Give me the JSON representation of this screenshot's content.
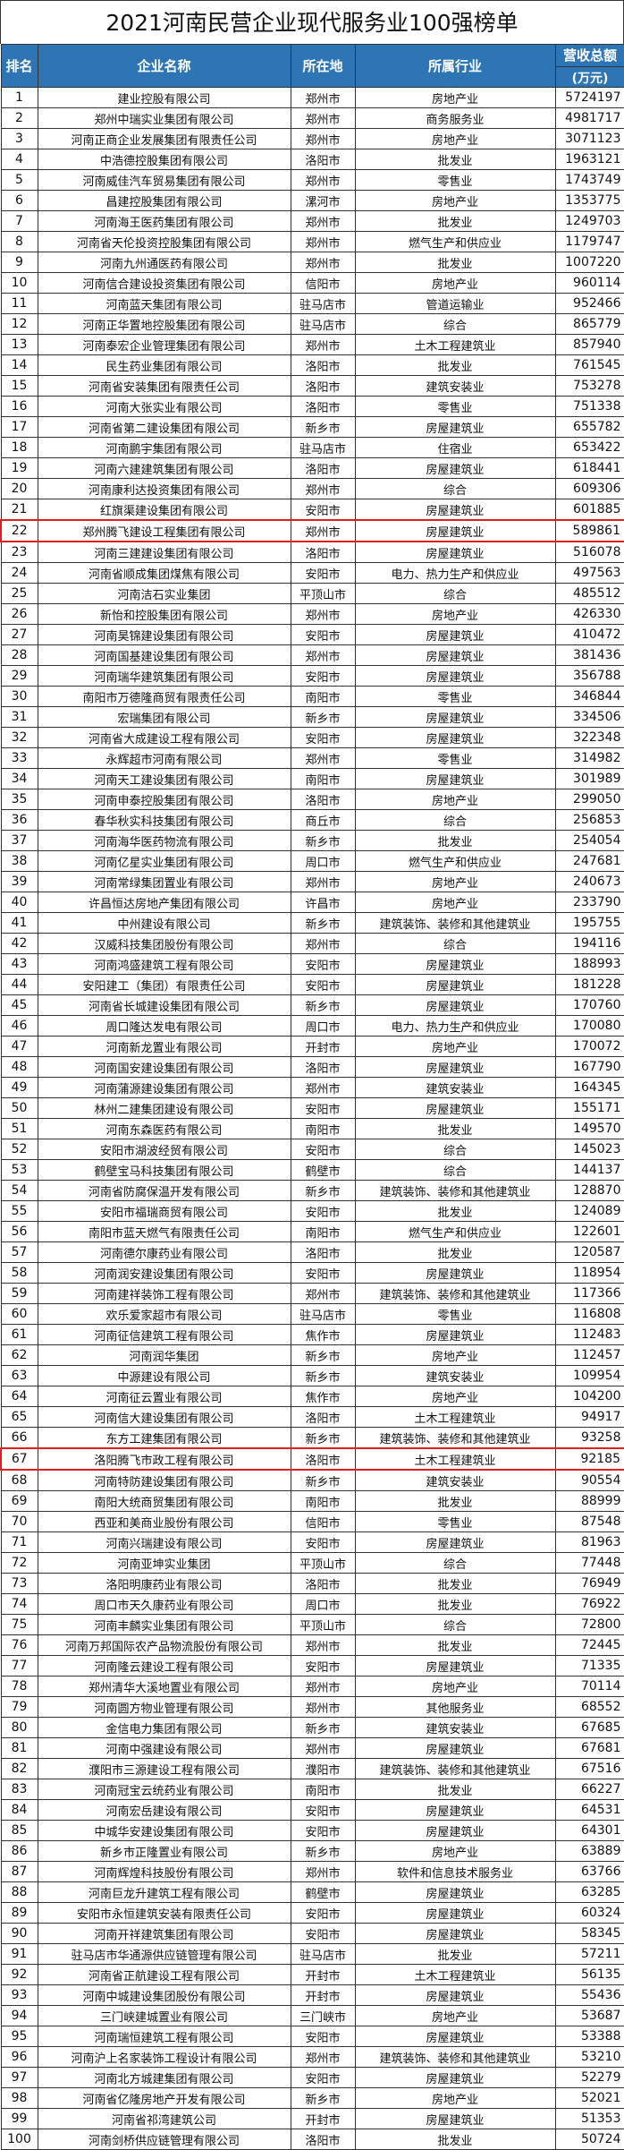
{
  "title": "2021河南民营企业现代服务业100强榜单",
  "header": {
    "rank": "排名",
    "name": "企业名称",
    "city": "所在地",
    "industry": "所属行业",
    "revenue": "营收总额",
    "revenue_unit": "(万元)"
  },
  "colors": {
    "header_bg": "#2e75b6",
    "highlight": "#e02020"
  },
  "highlighted_ranks": [
    22,
    67
  ],
  "rows": [
    [
      "1",
      "建业控股有限公司",
      "郑州市",
      "房地产业",
      "5724197"
    ],
    [
      "2",
      "郑州中瑞实业集团有限公司",
      "郑州市",
      "商务服务业",
      "4981717"
    ],
    [
      "3",
      "河南正商企业发展集团有限责任公司",
      "郑州市",
      "房地产业",
      "3071123"
    ],
    [
      "4",
      "中浩德控股集团有限公司",
      "洛阳市",
      "批发业",
      "1963121"
    ],
    [
      "5",
      "河南威佳汽车贸易集团有限公司",
      "郑州市",
      "零售业",
      "1743749"
    ],
    [
      "6",
      "昌建控股集团有限公司",
      "漯河市",
      "房地产业",
      "1353775"
    ],
    [
      "7",
      "河南海王医药集团有限公司",
      "郑州市",
      "批发业",
      "1249703"
    ],
    [
      "8",
      "河南省天伦投资控股集团有限公司",
      "郑州市",
      "燃气生产和供应业",
      "1179747"
    ],
    [
      "9",
      "河南九州通医药有限公司",
      "郑州市",
      "批发业",
      "1007220"
    ],
    [
      "10",
      "河南信合建设投资集团有限公司",
      "信阳市",
      "房地产业",
      "960114"
    ],
    [
      "11",
      "河南蓝天集团有限公司",
      "驻马店市",
      "管道运输业",
      "952466"
    ],
    [
      "12",
      "河南正华置地控股集团有限公司",
      "驻马店市",
      "综合",
      "865779"
    ],
    [
      "13",
      "河南泰宏企业管理集团有限公司",
      "郑州市",
      "土木工程建筑业",
      "857940"
    ],
    [
      "14",
      "民生药业集团有限公司",
      "洛阳市",
      "批发业",
      "761545"
    ],
    [
      "15",
      "河南省安装集团有限责任公司",
      "洛阳市",
      "建筑安装业",
      "753278"
    ],
    [
      "16",
      "河南大张实业有限公司",
      "洛阳市",
      "零售业",
      "751338"
    ],
    [
      "17",
      "河南省第二建设集团有限公司",
      "新乡市",
      "房屋建筑业",
      "655782"
    ],
    [
      "18",
      "河南鹏宇集团有限公司",
      "驻马店市",
      "住宿业",
      "653422"
    ],
    [
      "19",
      "河南六建建筑集团有限公司",
      "洛阳市",
      "房屋建筑业",
      "618441"
    ],
    [
      "20",
      "河南康利达投资集团有限公司",
      "郑州市",
      "综合",
      "609306"
    ],
    [
      "21",
      "红旗渠建设集团有限公司",
      "安阳市",
      "房屋建筑业",
      "601885"
    ],
    [
      "22",
      "郑州腾飞建设工程集团有限公司",
      "郑州市",
      "房屋建筑业",
      "589861"
    ],
    [
      "23",
      "河南三建建设集团有限公司",
      "洛阳市",
      "房屋建筑业",
      "516078"
    ],
    [
      "24",
      "河南省顺成集团煤焦有限公司",
      "安阳市",
      "电力、热力生产和供应业",
      "497563"
    ],
    [
      "25",
      "河南洁石实业集团",
      "平顶山市",
      "综合",
      "485512"
    ],
    [
      "26",
      "新怡和控股集团有限公司",
      "郑州市",
      "房地产业",
      "426330"
    ],
    [
      "27",
      "河南昊锦建设集团有限公司",
      "安阳市",
      "房屋建筑业",
      "410472"
    ],
    [
      "28",
      "河南国基建设集团有限公司",
      "郑州市",
      "房屋建筑业",
      "381436"
    ],
    [
      "29",
      "河南瑞华建筑集团有限公司",
      "安阳市",
      "房屋建筑业",
      "356788"
    ],
    [
      "30",
      "南阳市万德隆商贸有限责任公司",
      "南阳市",
      "零售业",
      "346844"
    ],
    [
      "31",
      "宏瑞集团有限公司",
      "新乡市",
      "房屋建筑业",
      "334506"
    ],
    [
      "32",
      "河南省大成建设工程有限公司",
      "安阳市",
      "房屋建筑业",
      "322348"
    ],
    [
      "33",
      "永辉超市河南有限公司",
      "郑州市",
      "零售业",
      "314982"
    ],
    [
      "34",
      "河南天工建设集团有限公司",
      "南阳市",
      "房屋建筑业",
      "301989"
    ],
    [
      "35",
      "河南申泰控股集团有限公司",
      "洛阳市",
      "房地产业",
      "299050"
    ],
    [
      "36",
      "春华秋实科技集团有限公司",
      "商丘市",
      "综合",
      "256853"
    ],
    [
      "37",
      "河南海华医药物流有限公司",
      "新乡市",
      "批发业",
      "254054"
    ],
    [
      "38",
      "河南亿星实业集团有限公司",
      "周口市",
      "燃气生产和供应业",
      "247681"
    ],
    [
      "39",
      "河南常绿集团置业有限公司",
      "郑州市",
      "房地产业",
      "240673"
    ],
    [
      "40",
      "许昌恒达房地产集团有限公司",
      "许昌市",
      "房地产业",
      "233790"
    ],
    [
      "41",
      "中州建设有限公司",
      "新乡市",
      "建筑装饰、装修和其他建筑业",
      "195755"
    ],
    [
      "42",
      "汉威科技集团股份有限公司",
      "郑州市",
      "综合",
      "194116"
    ],
    [
      "43",
      "河南鸿盛建筑工程有限公司",
      "安阳市",
      "房屋建筑业",
      "188993"
    ],
    [
      "44",
      "安阳建工（集团）有限责任公司",
      "安阳市",
      "房屋建筑业",
      "181228"
    ],
    [
      "45",
      "河南省长城建设集团有限公司",
      "新乡市",
      "房屋建筑业",
      "170760"
    ],
    [
      "46",
      "周口隆达发电有限公司",
      "周口市",
      "电力、热力生产和供应业",
      "170080"
    ],
    [
      "47",
      "河南新龙置业有限公司",
      "开封市",
      "房地产业",
      "170072"
    ],
    [
      "48",
      "河南国安建设集团有限公司",
      "洛阳市",
      "房屋建筑业",
      "167790"
    ],
    [
      "49",
      "河南蒲源建设集团有限公司",
      "郑州市",
      "建筑安装业",
      "164345"
    ],
    [
      "50",
      "林州二建集团建设有限公司",
      "安阳市",
      "房屋建筑业",
      "155171"
    ],
    [
      "51",
      "河南东森医药有限公司",
      "南阳市",
      "批发业",
      "149570"
    ],
    [
      "52",
      "安阳市湖波经贸有限公司",
      "安阳市",
      "综合",
      "145023"
    ],
    [
      "53",
      "鹤壁宝马科技集团有限公司",
      "鹤壁市",
      "综合",
      "144137"
    ],
    [
      "54",
      "河南省防腐保温开发有限公司",
      "新乡市",
      "建筑装饰、装修和其他建筑业",
      "128870"
    ],
    [
      "55",
      "安阳市福瑞商贸有限公司",
      "安阳市",
      "批发业",
      "124089"
    ],
    [
      "56",
      "南阳市蓝天燃气有限责任公司",
      "南阳市",
      "燃气生产和供应业",
      "122601"
    ],
    [
      "57",
      "河南德尔康药业有限公司",
      "洛阳市",
      "批发业",
      "120587"
    ],
    [
      "58",
      "河南润安建设集团有限公司",
      "安阳市",
      "房屋建筑业",
      "118954"
    ],
    [
      "59",
      "河南建祥装饰工程有限公司",
      "郑州市",
      "建筑装饰、装修和其他建筑业",
      "117366"
    ],
    [
      "60",
      "欢乐爱家超市有限公司",
      "驻马店市",
      "零售业",
      "116808"
    ],
    [
      "61",
      "河南征信建筑工程有限公司",
      "焦作市",
      "房屋建筑业",
      "112483"
    ],
    [
      "62",
      "河南润华集团",
      "新乡市",
      "房地产业",
      "112457"
    ],
    [
      "63",
      "中源建设有限公司",
      "新乡市",
      "建筑安装业",
      "109954"
    ],
    [
      "64",
      "河南征云置业有限公司",
      "焦作市",
      "房地产业",
      "104200"
    ],
    [
      "65",
      "河南信大建设集团有限公司",
      "洛阳市",
      "土木工程建筑业",
      "94917"
    ],
    [
      "66",
      "东方工建集团有限公司",
      "新乡市",
      "建筑装饰、装修和其他建筑业",
      "93258"
    ],
    [
      "67",
      "洛阳腾飞市政工程有限公司",
      "洛阳市",
      "土木工程建筑业",
      "92185"
    ],
    [
      "68",
      "河南特防建设集团有限公司",
      "新乡市",
      "建筑安装业",
      "90554"
    ],
    [
      "69",
      "南阳大统商贸集团有限公司",
      "南阳市",
      "批发业",
      "88999"
    ],
    [
      "70",
      "西亚和美商业股份有限公司",
      "信阳市",
      "零售业",
      "87548"
    ],
    [
      "71",
      "河南兴瑞建设有限公司",
      "安阳市",
      "房屋建筑业",
      "81963"
    ],
    [
      "72",
      "河南亚坤实业集团",
      "平顶山市",
      "综合",
      "77448"
    ],
    [
      "73",
      "洛阳明康药业有限公司",
      "洛阳市",
      "批发业",
      "76949"
    ],
    [
      "74",
      "周口市天久康药业有限公司",
      "周口市",
      "批发业",
      "76922"
    ],
    [
      "75",
      "河南丰麟实业集团有限公司",
      "平顶山市",
      "综合",
      "72800"
    ],
    [
      "76",
      "河南万邦国际农产品物流股份有限公司",
      "郑州市",
      "批发业",
      "72445"
    ],
    [
      "77",
      "河南隆云建设工程有限公司",
      "安阳市",
      "房屋建筑业",
      "71335"
    ],
    [
      "78",
      "郑州清华大溪地置业有限公司",
      "郑州市",
      "房地产业",
      "70114"
    ],
    [
      "79",
      "河南圆方物业管理有限公司",
      "郑州市",
      "其他服务业",
      "68552"
    ],
    [
      "80",
      "金信电力集团有限公司",
      "新乡市",
      "建筑安装业",
      "67685"
    ],
    [
      "81",
      "河南中强建设有限公司",
      "郑州市",
      "房屋建筑业",
      "67681"
    ],
    [
      "82",
      "濮阳市三源建设工程有限公司",
      "濮阳市",
      "建筑装饰、装修和其他建筑业",
      "67516"
    ],
    [
      "83",
      "河南冠宝云统药业有限公司",
      "南阳市",
      "批发业",
      "66227"
    ],
    [
      "84",
      "河南宏岳建设有限公司",
      "安阳市",
      "房屋建筑业",
      "64531"
    ],
    [
      "85",
      "中城华安建设集团有限公司",
      "安阳市",
      "房屋建筑业",
      "64301"
    ],
    [
      "86",
      "新乡市正隆置业有限公司",
      "新乡市",
      "房地产业",
      "63889"
    ],
    [
      "87",
      "河南辉煌科技股份有限公司",
      "郑州市",
      "软件和信息技术服务业",
      "63766"
    ],
    [
      "88",
      "河南巨龙升建筑工程有限公司",
      "鹤壁市",
      "房屋建筑业",
      "63285"
    ],
    [
      "89",
      "安阳市永恒建筑安装有限责任公司",
      "安阳市",
      "房屋建筑业",
      "60324"
    ],
    [
      "90",
      "河南开祥建筑集团有限公司",
      "安阳市",
      "房屋建筑业",
      "58345"
    ],
    [
      "91",
      "驻马店市华通源供应链管理有限公司",
      "驻马店市",
      "批发业",
      "57211"
    ],
    [
      "92",
      "河南省正航建设工程有限公司",
      "开封市",
      "土木工程建筑业",
      "56135"
    ],
    [
      "93",
      "河南中城建设集团股份有限公司",
      "开封市",
      "房屋建筑业",
      "55436"
    ],
    [
      "94",
      "三门峡建城置业有限公司",
      "三门峡市",
      "房地产业",
      "53687"
    ],
    [
      "95",
      "河南瑞恒建筑工程有限公司",
      "安阳市",
      "房屋建筑业",
      "53388"
    ],
    [
      "96",
      "河南沪上名家装饰工程设计有限公司",
      "郑州市",
      "建筑装饰、装修和其他建筑业",
      "53210"
    ],
    [
      "97",
      "河南北方城建集团有限公司",
      "安阳市",
      "房屋建筑业",
      "52279"
    ],
    [
      "98",
      "河南省亿隆房地产开发有限公司",
      "新乡市",
      "房地产业",
      "52021"
    ],
    [
      "99",
      "河南省祁湾建筑公司",
      "开封市",
      "房屋建筑业",
      "51353"
    ],
    [
      "100",
      "河南剑桥供应链管理有限公司",
      "洛阳市",
      "批发业",
      "50724"
    ]
  ]
}
